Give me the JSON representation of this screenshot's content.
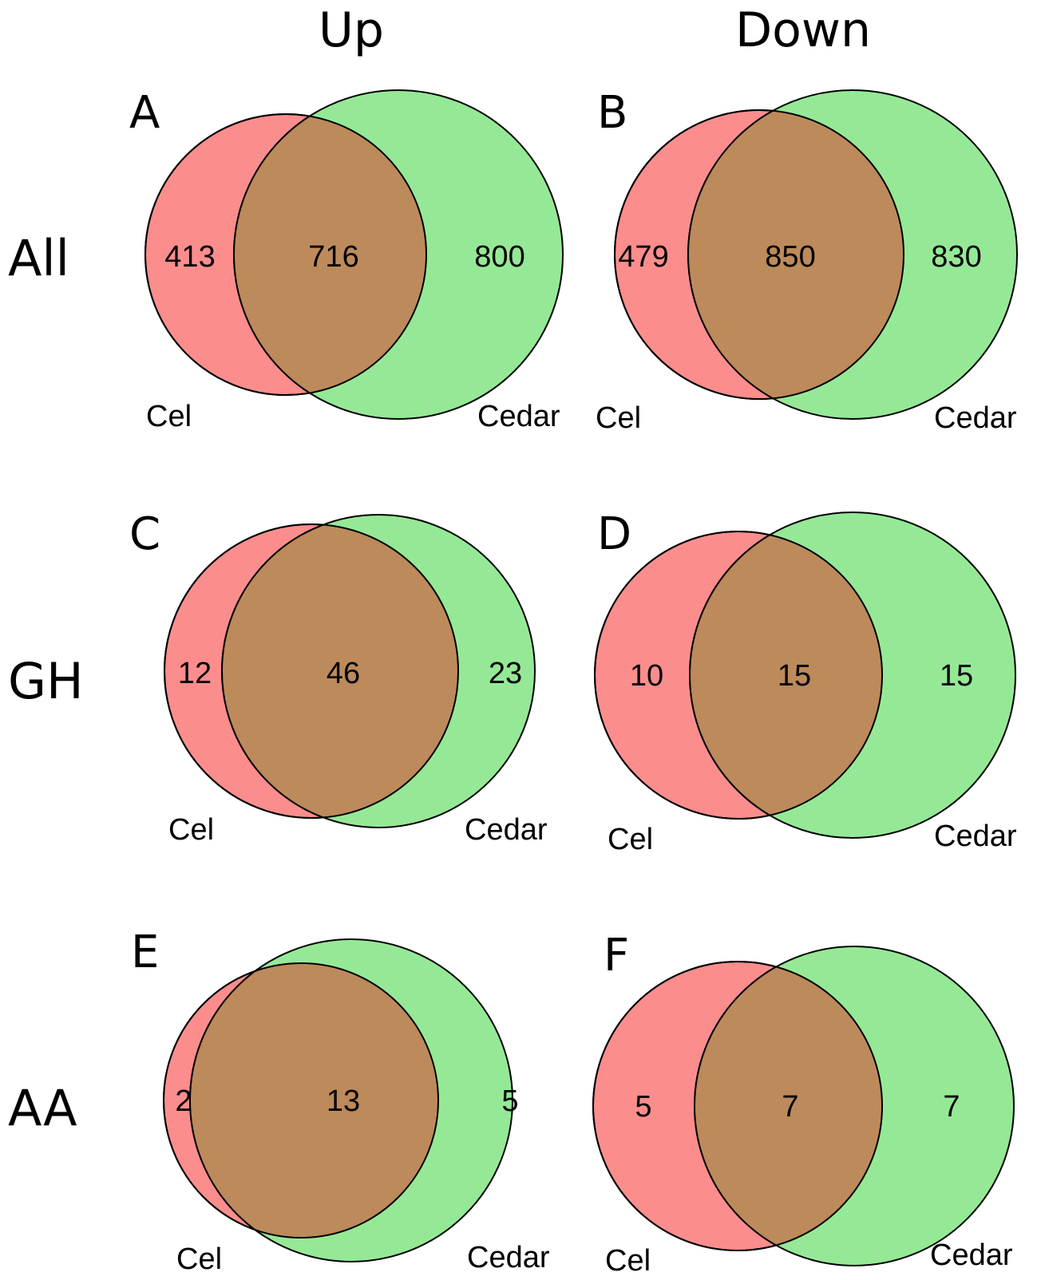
{
  "columns": [
    "Up",
    "Down"
  ],
  "rows": [
    "All",
    "GH",
    "AA"
  ],
  "colors": {
    "set_a": "#fc8d8d",
    "set_b": "#8fe890",
    "overlap": "#bd8a5b"
  },
  "panels": [
    {
      "letter": "A",
      "set_a_name": "Cel",
      "set_b_name": "Cedar",
      "only_a": "413",
      "both": "716",
      "only_b": "800"
    },
    {
      "letter": "B",
      "set_a_name": "Cel",
      "set_b_name": "Cedar",
      "only_a": "479",
      "both": "850",
      "only_b": "830"
    },
    {
      "letter": "C",
      "set_a_name": "Cel",
      "set_b_name": "Cedar",
      "only_a": "12",
      "both": "46",
      "only_b": "23"
    },
    {
      "letter": "D",
      "set_a_name": "Cel",
      "set_b_name": "Cedar",
      "only_a": "10",
      "both": "15",
      "only_b": "15"
    },
    {
      "letter": "E",
      "set_a_name": "Cel",
      "set_b_name": "Cedar",
      "only_a": "2",
      "both": "13",
      "only_b": "5"
    },
    {
      "letter": "F",
      "set_a_name": "Cel",
      "set_b_name": "Cedar",
      "only_a": "5",
      "both": "7",
      "only_b": "7"
    }
  ]
}
